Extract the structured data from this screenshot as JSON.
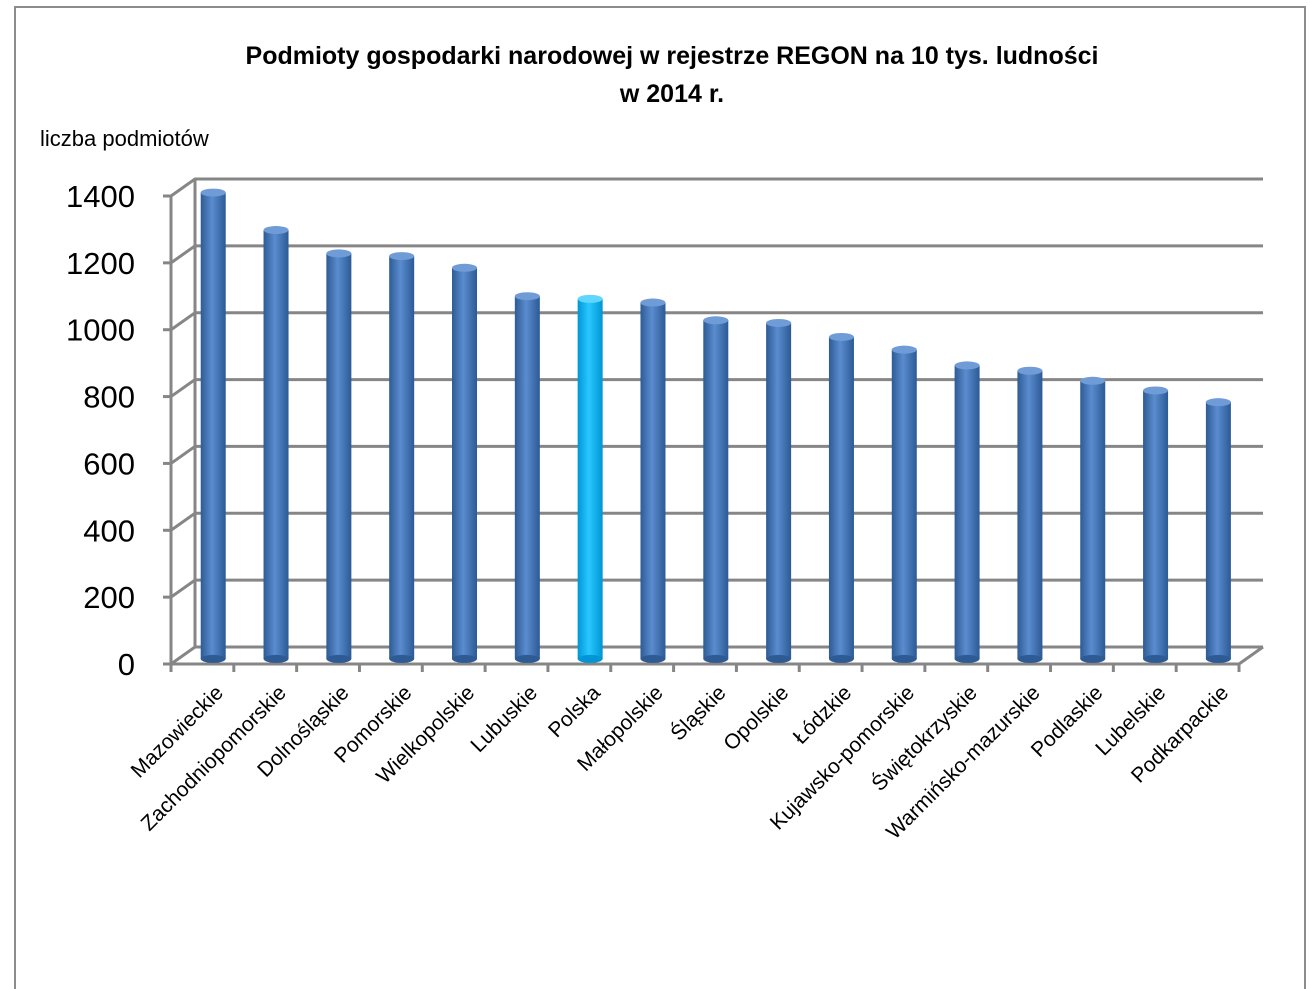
{
  "chart_data": {
    "type": "bar",
    "title_line1": "Podmioty gospodarki narodowej w rejestrze REGON na 10 tys. ludności",
    "title_line2": "w 2014 r.",
    "ylabel": "liczba podmiotów",
    "xlabel": "",
    "ylim": [
      0,
      1400
    ],
    "yticks": [
      "0",
      "200",
      "400",
      "600",
      "800",
      "1000",
      "1200",
      "1400"
    ],
    "grid": true,
    "legend": "none",
    "categories": [
      "Mazowieckie",
      "Zachodniopomorskie",
      "Dolnośląskie",
      "Pomorskie",
      "Wielkopolskie",
      "Lubuskie",
      "Polska",
      "Małopolskie",
      "Śląskie",
      "Opolskie",
      "Łódzkie",
      "Kujawsko-pomorskie",
      "Świętokrzyskie",
      "Warmińsko-mazurskie",
      "Podlaskie",
      "Lubelskie",
      "Podkarpackie"
    ],
    "values": [
      1395,
      1283,
      1213,
      1205,
      1170,
      1085,
      1077,
      1066,
      1013,
      1005,
      963,
      925,
      878,
      862,
      832,
      803,
      768
    ],
    "colors": {
      "bar": "#4f81bd",
      "highlight": "#00b0f0",
      "grid": "#868686",
      "wall": "#ffffff"
    },
    "highlight_category": "Polska"
  }
}
